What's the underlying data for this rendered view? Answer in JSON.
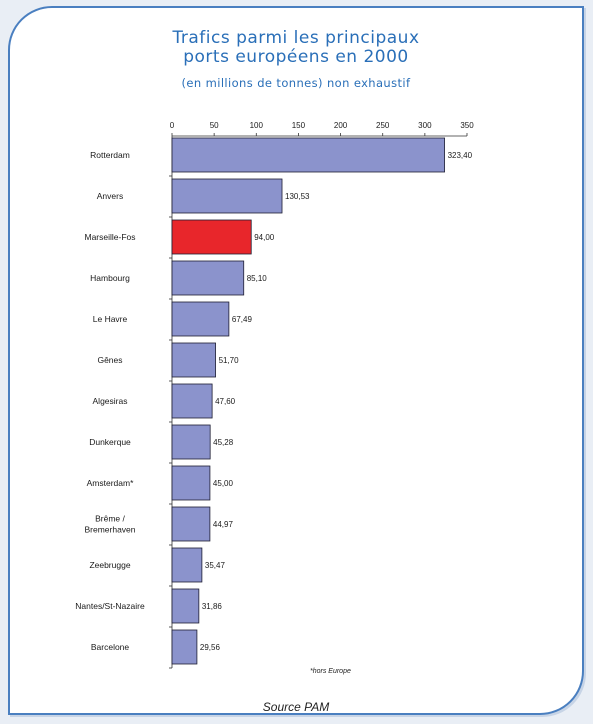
{
  "title_line1": "Trafics parmi les principaux",
  "title_line2": "ports européens en 2000",
  "subtitle": "(en millions de tonnes) non exhaustif",
  "footnote": "*hors Europe",
  "source": "Source PAM",
  "colors": {
    "accent": "#2a6fb8",
    "bar": "#8b93cc",
    "highlight": "#e8262b",
    "border": "#4a7fc0"
  },
  "chart_data": {
    "type": "bar",
    "orientation": "horizontal",
    "categories": [
      "Rotterdam",
      "Anvers",
      "Marseille-Fos",
      "Hambourg",
      "Le Havre",
      "Gênes",
      "Algesiras",
      "Dunkerque",
      "Amsterdam*",
      "Brême / Bremerhaven",
      "Zeebrugge",
      "Nantes/St-Nazaire",
      "Barcelone"
    ],
    "category_lines": [
      [
        "Rotterdam"
      ],
      [
        "Anvers"
      ],
      [
        "Marseille-Fos"
      ],
      [
        "Hambourg"
      ],
      [
        "Le Havre"
      ],
      [
        "Gênes"
      ],
      [
        "Algesiras"
      ],
      [
        "Dunkerque"
      ],
      [
        "Amsterdam*"
      ],
      [
        "Brême /",
        "Bremerhaven"
      ],
      [
        "Zeebrugge"
      ],
      [
        "Nantes/St-Nazaire"
      ],
      [
        "Barcelone"
      ]
    ],
    "values": [
      323.4,
      130.53,
      94.0,
      85.1,
      67.49,
      51.7,
      47.6,
      45.28,
      45.0,
      44.97,
      35.47,
      31.86,
      29.56
    ],
    "value_labels": [
      "323,40",
      "130,53",
      "94,00",
      "85,10",
      "67,49",
      "51,70",
      "47,60",
      "45,28",
      "45,00",
      "44,97",
      "35,47",
      "31,86",
      "29,56"
    ],
    "highlight_category": "Marseille-Fos",
    "xticks": [
      0,
      50,
      100,
      150,
      200,
      250,
      300,
      350
    ],
    "xlim": [
      0,
      350
    ],
    "axis_position": "top",
    "grid": false
  }
}
